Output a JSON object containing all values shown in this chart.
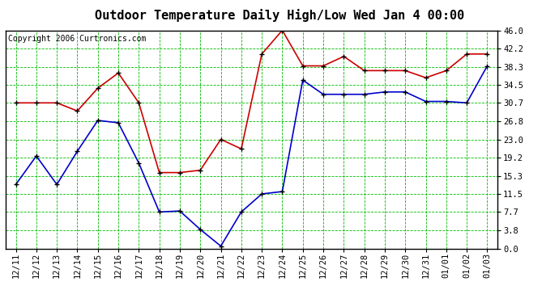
{
  "title": "Outdoor Temperature Daily High/Low Wed Jan 4 00:00",
  "copyright": "Copyright 2006 Curtronics.com",
  "x_labels": [
    "12/11",
    "12/12",
    "12/13",
    "12/14",
    "12/15",
    "12/16",
    "12/17",
    "12/18",
    "12/19",
    "12/20",
    "12/21",
    "12/22",
    "12/23",
    "12/24",
    "12/25",
    "12/26",
    "12/27",
    "12/28",
    "12/29",
    "12/30",
    "12/31",
    "01/01",
    "01/02",
    "01/03"
  ],
  "high_values": [
    30.7,
    30.7,
    30.7,
    29.0,
    33.8,
    37.0,
    30.7,
    16.0,
    16.0,
    16.5,
    23.0,
    21.0,
    41.0,
    46.0,
    38.5,
    38.5,
    40.5,
    37.5,
    37.5,
    37.5,
    36.0,
    37.5,
    41.0,
    41.0
  ],
  "low_values": [
    13.5,
    19.5,
    13.5,
    20.5,
    27.0,
    26.5,
    18.0,
    7.7,
    7.9,
    4.0,
    0.5,
    7.7,
    11.5,
    12.0,
    35.5,
    32.5,
    32.5,
    32.5,
    33.0,
    33.0,
    31.0,
    31.0,
    30.7,
    38.5
  ],
  "high_color": "#cc0000",
  "low_color": "#0000cc",
  "marker_color": "#000000",
  "bg_color": "#ffffff",
  "plot_bg_color": "#ffffff",
  "grid_color": "#00bb00",
  "border_color": "#000000",
  "y_ticks": [
    0.0,
    3.8,
    7.7,
    11.5,
    15.3,
    19.2,
    23.0,
    26.8,
    30.7,
    34.5,
    38.3,
    42.2,
    46.0
  ],
  "ylim": [
    0.0,
    46.0
  ],
  "title_fontsize": 11,
  "copyright_fontsize": 7,
  "tick_fontsize": 7.5
}
